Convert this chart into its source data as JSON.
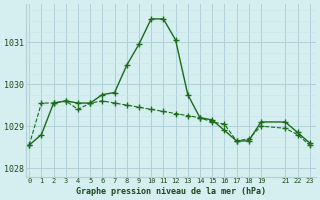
{
  "line1_x": [
    0,
    1,
    2,
    3,
    4,
    5,
    6,
    7,
    8,
    9,
    10,
    11,
    12,
    13,
    14,
    15,
    16,
    17,
    18,
    19,
    21,
    22,
    23
  ],
  "line1_y": [
    1028.55,
    1028.8,
    1029.55,
    1029.6,
    1029.55,
    1029.55,
    1029.75,
    1029.8,
    1030.45,
    1030.95,
    1031.55,
    1031.55,
    1031.05,
    1029.75,
    1029.2,
    1029.15,
    1028.9,
    1028.65,
    1028.65,
    1029.1,
    1029.1,
    1028.85,
    1028.6
  ],
  "line2_x": [
    0,
    1,
    2,
    3,
    4,
    5,
    6,
    7,
    8,
    9,
    10,
    11,
    12,
    13,
    14,
    15,
    16,
    17,
    18,
    19,
    21,
    22,
    23
  ],
  "line2_y": [
    1028.55,
    1029.55,
    1029.55,
    1029.6,
    1029.4,
    1029.55,
    1029.6,
    1029.55,
    1029.5,
    1029.45,
    1029.4,
    1029.35,
    1029.3,
    1029.25,
    1029.2,
    1029.1,
    1029.05,
    1028.65,
    1028.7,
    1029.0,
    1028.95,
    1028.8,
    1028.55
  ],
  "line_color": "#1a6b1a",
  "bg_color": "#d5eef0",
  "grid_color_major": "#b0d0d8",
  "grid_color_minor": "#c8e4e8",
  "xlabel": "Graphe pression niveau de la mer (hPa)",
  "xlabel_color": "#1a4a1a",
  "ylabel_ticks": [
    1028,
    1029,
    1030,
    1031
  ],
  "xticks": [
    0,
    1,
    2,
    3,
    4,
    5,
    6,
    7,
    8,
    9,
    10,
    11,
    12,
    13,
    14,
    15,
    16,
    17,
    18,
    19,
    21,
    22,
    23
  ],
  "ylim": [
    1027.8,
    1031.9
  ],
  "xlim": [
    -0.3,
    23.5
  ]
}
